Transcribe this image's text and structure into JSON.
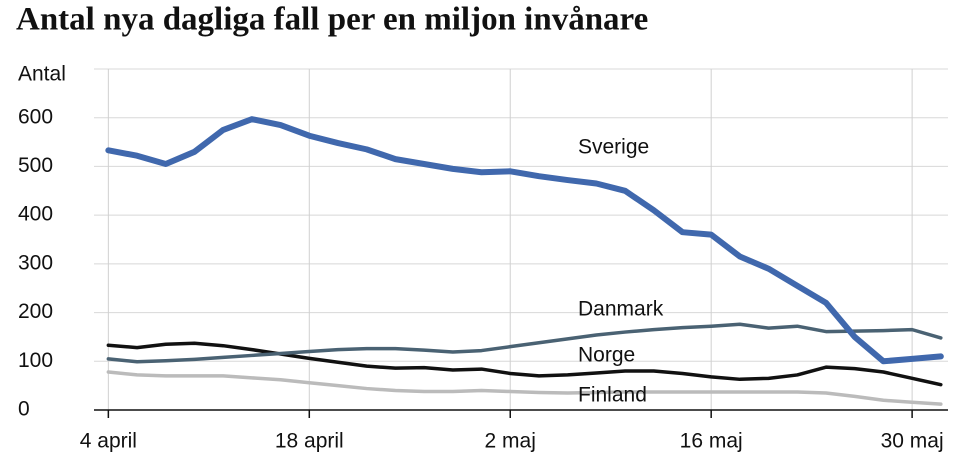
{
  "chart_data": {
    "type": "line",
    "title": "Antal nya dagliga fall per en miljon invånare",
    "y_label": "Antal",
    "x": [
      0,
      2,
      4,
      6,
      8,
      10,
      12,
      14,
      16,
      18,
      20,
      22,
      24,
      26,
      28,
      30,
      32,
      34,
      36,
      38,
      40,
      42,
      44,
      46,
      48,
      50,
      52,
      54,
      56,
      58
    ],
    "xlim": [
      -1,
      58.5
    ],
    "xticks": [
      {
        "value": 0,
        "label": "4 april"
      },
      {
        "value": 14,
        "label": "18 april"
      },
      {
        "value": 28,
        "label": "2 maj"
      },
      {
        "value": 42,
        "label": "16 maj"
      },
      {
        "value": 56,
        "label": "30 maj"
      }
    ],
    "ylim": [
      0,
      700
    ],
    "yticks": [
      0,
      100,
      200,
      300,
      400,
      500,
      600
    ],
    "grid": true,
    "series": [
      {
        "name": "Sverige",
        "color": "#4068ad",
        "width": 6,
        "values": [
          533,
          522,
          505,
          530,
          575,
          597,
          585,
          563,
          548,
          535,
          515,
          505,
          495,
          488,
          490,
          480,
          472,
          465,
          450,
          410,
          365,
          360,
          315,
          290,
          255,
          220,
          150,
          100,
          105,
          110
        ]
      },
      {
        "name": "Danmark",
        "color": "#4a6273",
        "width": 3.5,
        "values": [
          105,
          99,
          101,
          104,
          108,
          112,
          116,
          120,
          124,
          126,
          126,
          123,
          119,
          122,
          130,
          138,
          146,
          154,
          160,
          165,
          169,
          172,
          176,
          168,
          172,
          161,
          162,
          163,
          165,
          148
        ]
      },
      {
        "name": "Norge",
        "color": "#111111",
        "width": 3.5,
        "values": [
          133,
          128,
          135,
          137,
          132,
          124,
          115,
          106,
          98,
          90,
          86,
          87,
          82,
          84,
          75,
          70,
          72,
          76,
          80,
          80,
          75,
          68,
          63,
          65,
          72,
          88,
          85,
          78,
          65,
          52
        ]
      },
      {
        "name": "Finland",
        "color": "#bbbbbb",
        "width": 3.5,
        "values": [
          78,
          72,
          70,
          70,
          70,
          66,
          62,
          56,
          50,
          44,
          40,
          38,
          38,
          40,
          38,
          36,
          35,
          36,
          37,
          37,
          37,
          37,
          37,
          37,
          37,
          35,
          28,
          20,
          16,
          12
        ]
      }
    ]
  }
}
